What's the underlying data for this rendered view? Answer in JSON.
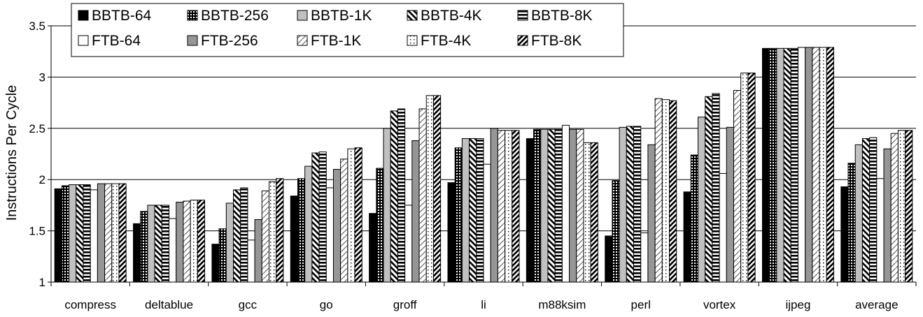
{
  "chart_data": {
    "type": "bar",
    "title": "",
    "xlabel": "",
    "ylabel": "Instructions Per Cycle",
    "ylim": [
      1,
      3.5
    ],
    "yticks": [
      "1",
      "1.5",
      "2",
      "2.5",
      "3",
      "3.5"
    ],
    "grid": "horizontal",
    "legend_position": "top-left",
    "categories": [
      "compress",
      "deltablue",
      "gcc",
      "go",
      "groff",
      "li",
      "m88ksim",
      "perl",
      "vortex",
      "ijpeg",
      "average"
    ],
    "series": [
      {
        "name": "BBTB-64",
        "pattern": "solid-black",
        "values": [
          1.91,
          1.57,
          1.37,
          1.84,
          1.67,
          1.97,
          2.4,
          1.45,
          1.88,
          3.28,
          1.93
        ]
      },
      {
        "name": "BBTB-256",
        "pattern": "dotted",
        "values": [
          1.94,
          1.69,
          1.52,
          2.01,
          2.11,
          2.31,
          2.49,
          1.99,
          2.24,
          3.28,
          2.16
        ]
      },
      {
        "name": "BBTB-1K",
        "pattern": "light-gray",
        "values": [
          1.95,
          1.75,
          1.77,
          2.13,
          2.5,
          2.4,
          2.49,
          2.51,
          2.61,
          3.28,
          2.34
        ]
      },
      {
        "name": "BBTB-4K",
        "pattern": "zigzag",
        "values": [
          1.95,
          1.75,
          1.9,
          2.26,
          2.67,
          2.4,
          2.49,
          2.52,
          2.81,
          3.28,
          2.4
        ]
      },
      {
        "name": "BBTB-8K",
        "pattern": "horizontal-lines",
        "values": [
          1.95,
          1.75,
          1.92,
          2.27,
          2.69,
          2.4,
          2.49,
          2.52,
          2.84,
          3.28,
          2.41
        ]
      },
      {
        "name": "FTB-64",
        "pattern": "white",
        "values": [
          1.9,
          1.62,
          1.41,
          1.92,
          1.75,
          2.15,
          2.53,
          1.48,
          2.06,
          3.29,
          2.01
        ]
      },
      {
        "name": "FTB-256",
        "pattern": "medium-gray",
        "values": [
          1.96,
          1.78,
          1.61,
          2.1,
          2.38,
          2.5,
          2.49,
          2.34,
          2.51,
          3.29,
          2.3
        ]
      },
      {
        "name": "FTB-1K",
        "pattern": "light-dashes",
        "values": [
          1.96,
          1.79,
          1.89,
          2.2,
          2.69,
          2.48,
          2.49,
          2.79,
          2.87,
          3.29,
          2.45
        ]
      },
      {
        "name": "FTB-4K",
        "pattern": "sparse-dots",
        "values": [
          1.96,
          1.8,
          1.98,
          2.3,
          2.82,
          2.48,
          2.36,
          2.78,
          3.04,
          3.29,
          2.48
        ]
      },
      {
        "name": "FTB-8K",
        "pattern": "diagonal-stripes",
        "values": [
          1.96,
          1.8,
          2.01,
          2.31,
          2.82,
          2.48,
          2.36,
          2.77,
          3.04,
          3.29,
          2.48
        ]
      }
    ]
  }
}
